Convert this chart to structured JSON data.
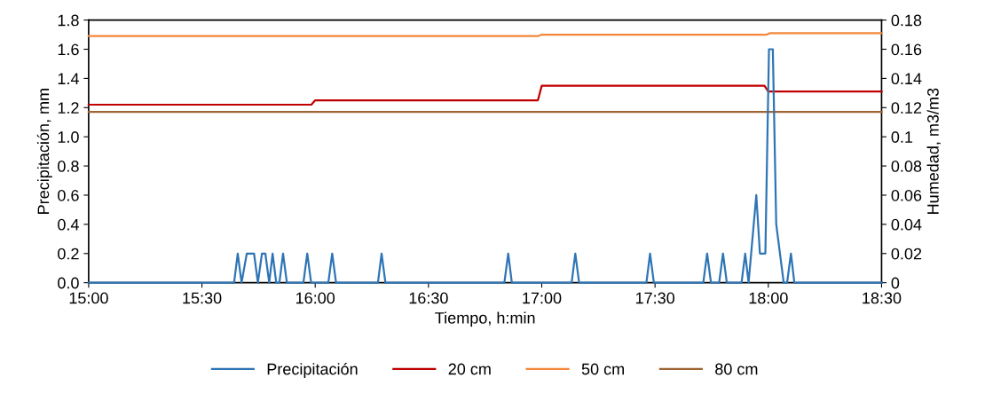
{
  "chart_data": {
    "type": "line",
    "xlabel": "Tiempo, h:min",
    "ylabel": "Precipitación, mm",
    "y2label": "Humedad, m3/m3",
    "xlim": [
      15,
      18.5
    ],
    "xticks": [
      {
        "value": 15,
        "label": "15:00"
      },
      {
        "value": 15.5,
        "label": "15:30"
      },
      {
        "value": 16,
        "label": "16:00"
      },
      {
        "value": 16.5,
        "label": "16:30"
      },
      {
        "value": 17,
        "label": "17:00"
      },
      {
        "value": 17.5,
        "label": "17:30"
      },
      {
        "value": 18,
        "label": "18:00"
      },
      {
        "value": 18.5,
        "label": "18:30"
      }
    ],
    "ylim": [
      0,
      1.8
    ],
    "yticks": [
      {
        "value": 0,
        "label": "0.0"
      },
      {
        "value": 0.2,
        "label": "0.2"
      },
      {
        "value": 0.4,
        "label": "0.4"
      },
      {
        "value": 0.6,
        "label": "0.6"
      },
      {
        "value": 0.8,
        "label": "0.8"
      },
      {
        "value": 1.0,
        "label": "1.0"
      },
      {
        "value": 1.2,
        "label": "1.2"
      },
      {
        "value": 1.4,
        "label": "1.4"
      },
      {
        "value": 1.6,
        "label": "1.6"
      },
      {
        "value": 1.8,
        "label": "1.8"
      }
    ],
    "y2lim": [
      0,
      0.18
    ],
    "y2ticks": [
      0,
      0.02,
      0.04,
      0.06,
      0.08,
      0.1,
      0.12,
      0.14,
      0.16,
      0.18
    ],
    "grid": false,
    "legend": "bottom",
    "marker": "none",
    "line_style": "solid",
    "series": [
      {
        "name": "Precipitación",
        "color": "#2e75b6",
        "x": [
          15.0,
          15.642,
          15.658,
          15.675,
          15.698,
          15.73,
          15.747,
          15.765,
          15.78,
          15.797,
          15.812,
          15.828,
          15.842,
          15.858,
          15.875,
          15.948,
          15.965,
          15.982,
          16.058,
          16.075,
          16.092,
          16.277,
          16.293,
          16.31,
          16.835,
          16.852,
          16.868,
          17.132,
          17.148,
          17.165,
          17.462,
          17.478,
          17.495,
          17.713,
          17.73,
          17.747,
          17.783,
          17.8,
          17.817,
          17.882,
          17.898,
          17.913,
          17.947,
          17.963,
          17.987,
          18.003,
          18.02,
          18.035,
          18.068,
          18.083,
          18.1,
          18.115,
          18.5
        ],
        "values": [
          0,
          0,
          0.2,
          0,
          0.2,
          0.2,
          0,
          0.2,
          0.2,
          0,
          0.2,
          0,
          0,
          0.2,
          0,
          0,
          0.2,
          0,
          0,
          0.2,
          0,
          0,
          0.2,
          0,
          0,
          0.2,
          0,
          0,
          0.2,
          0,
          0,
          0.2,
          0,
          0,
          0.2,
          0,
          0,
          0.2,
          0,
          0,
          0.2,
          0,
          0.6,
          0.2,
          0.2,
          1.6,
          1.6,
          0.4,
          0,
          0,
          0.2,
          0,
          0
        ]
      },
      {
        "name": "20 cm",
        "color": "#c00000",
        "axis": "y2",
        "x": [
          15.0,
          15.983,
          16.0,
          16.983,
          17.0,
          17.983,
          18.0,
          18.5
        ],
        "values": [
          0.122,
          0.122,
          0.125,
          0.125,
          0.135,
          0.135,
          0.131,
          0.131
        ]
      },
      {
        "name": "50 cm",
        "color": "#f4883a",
        "axis": "y2",
        "x": [
          15.0,
          16.983,
          17.0,
          17.992,
          18.008,
          18.5
        ],
        "values": [
          0.169,
          0.169,
          0.17,
          0.17,
          0.171,
          0.171
        ]
      },
      {
        "name": "80 cm",
        "color": "#9e6634",
        "axis": "y2",
        "x": [
          15.0,
          18.5
        ],
        "values": [
          0.117,
          0.117
        ]
      }
    ]
  }
}
